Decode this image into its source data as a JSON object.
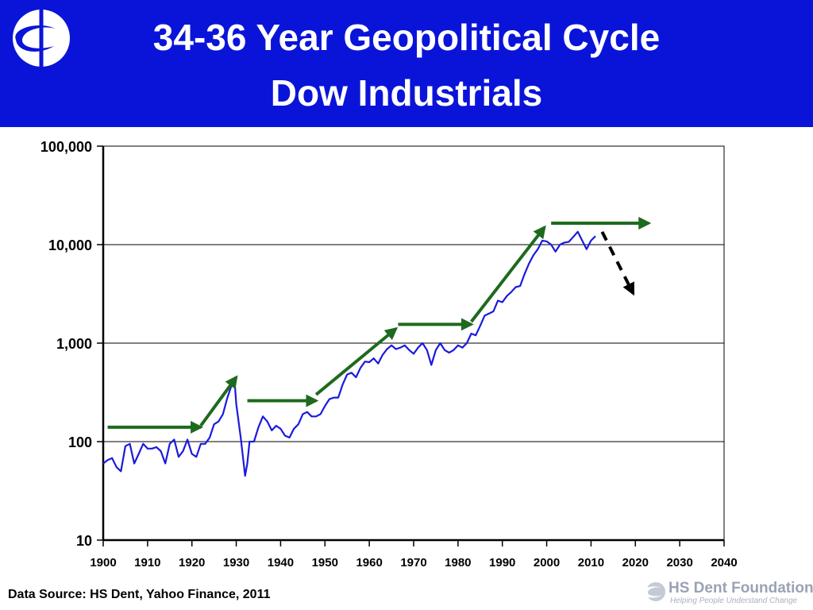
{
  "header": {
    "title_line1": "34-36 Year Geopolitical Cycle",
    "title_line2": "Dow Industrials",
    "logo_icon": "hs-dent-swoosh-icon"
  },
  "footer": {
    "source": "Data Source: HS Dent, Yahoo Finance, 2011",
    "brand_name": "HS Dent Foundation",
    "brand_tagline": "Helping People Understand Change",
    "brand_icon": "hs-dent-swoosh-icon"
  },
  "colors": {
    "header_bg": "#0a14d8",
    "series": "#1a1adf",
    "trend_arrows": "#1e6a1e",
    "forecast_arrow": "#000000",
    "gridline": "#000000"
  },
  "chart_data": {
    "type": "line",
    "scale": "log",
    "xlim": [
      1900,
      2040
    ],
    "ylim": [
      10,
      100000
    ],
    "grid": true,
    "x_ticks": [
      "1900",
      "1910",
      "1920",
      "1930",
      "1940",
      "1950",
      "1960",
      "1970",
      "1980",
      "1990",
      "2000",
      "2010",
      "2020",
      "2030",
      "2040"
    ],
    "y_ticks": [
      {
        "value": 10,
        "label": "10"
      },
      {
        "value": 100,
        "label": "100"
      },
      {
        "value": 1000,
        "label": "1,000"
      },
      {
        "value": 10000,
        "label": "10,000"
      },
      {
        "value": 100000,
        "label": "100,000"
      }
    ],
    "series": [
      {
        "x": [
          1900,
          1901,
          1902,
          1903,
          1904,
          1905,
          1906,
          1907,
          1908,
          1909,
          1910,
          1911,
          1912,
          1913,
          1914,
          1915,
          1916,
          1917,
          1918,
          1919,
          1920,
          1921,
          1922,
          1923,
          1924,
          1925,
          1926,
          1927,
          1928,
          1929,
          1929.7,
          1930,
          1931,
          1932,
          1932.5,
          1933,
          1934,
          1935,
          1936,
          1937,
          1938,
          1939,
          1940,
          1941,
          1942,
          1943,
          1944,
          1945,
          1946,
          1947,
          1948,
          1949,
          1950,
          1951,
          1952,
          1953,
          1954,
          1955,
          1956,
          1957,
          1958,
          1959,
          1960,
          1961,
          1962,
          1963,
          1964,
          1965,
          1966,
          1967,
          1968,
          1969,
          1970,
          1971,
          1972,
          1973,
          1974,
          1975,
          1976,
          1977,
          1978,
          1979,
          1980,
          1981,
          1982,
          1983,
          1984,
          1985,
          1986,
          1987,
          1988,
          1989,
          1990,
          1991,
          1992,
          1993,
          1994,
          1995,
          1996,
          1997,
          1998,
          1999,
          2000,
          2001,
          2002,
          2003,
          2004,
          2005,
          2006,
          2007,
          2008,
          2009,
          2010,
          2011
        ],
        "y": [
          60,
          65,
          68,
          55,
          50,
          90,
          95,
          60,
          75,
          95,
          85,
          85,
          88,
          80,
          60,
          95,
          105,
          70,
          80,
          105,
          75,
          70,
          95,
          95,
          110,
          150,
          160,
          190,
          280,
          380,
          370,
          240,
          110,
          45,
          60,
          100,
          100,
          140,
          180,
          160,
          130,
          145,
          135,
          115,
          110,
          135,
          150,
          190,
          200,
          180,
          180,
          190,
          230,
          270,
          280,
          280,
          380,
          480,
          500,
          450,
          560,
          650,
          640,
          700,
          620,
          760,
          870,
          950,
          870,
          900,
          950,
          850,
          780,
          900,
          1000,
          850,
          600,
          850,
          1000,
          850,
          800,
          850,
          950,
          900,
          1000,
          1250,
          1200,
          1500,
          1900,
          2000,
          2100,
          2700,
          2600,
          3000,
          3300,
          3700,
          3800,
          5000,
          6400,
          7800,
          9000,
          11000,
          10800,
          10000,
          8500,
          10000,
          10500,
          10700,
          12000,
          13500,
          11000,
          9000,
          11000,
          12200
        ]
      }
    ],
    "annotations": [
      {
        "type": "arrow",
        "color": "green",
        "from": [
          1901,
          140
        ],
        "to": [
          1922,
          140
        ]
      },
      {
        "type": "arrow",
        "color": "green",
        "from": [
          1922,
          145
        ],
        "to": [
          1930,
          450
        ]
      },
      {
        "type": "arrow",
        "color": "green",
        "from": [
          1932.5,
          260
        ],
        "to": [
          1948,
          260
        ]
      },
      {
        "type": "arrow",
        "color": "green",
        "from": [
          1948,
          300
        ],
        "to": [
          1966,
          1400
        ]
      },
      {
        "type": "arrow",
        "color": "green",
        "from": [
          1966.5,
          1550
        ],
        "to": [
          1983,
          1550
        ]
      },
      {
        "type": "arrow",
        "color": "green",
        "from": [
          1983,
          1650
        ],
        "to": [
          1999.5,
          15000
        ]
      },
      {
        "type": "arrow",
        "color": "green",
        "from": [
          2001,
          16500
        ],
        "to": [
          2023,
          16500
        ]
      },
      {
        "type": "arrow",
        "color": "black",
        "style": "dashed",
        "from": [
          2012.5,
          13500
        ],
        "to": [
          2019.5,
          3200
        ]
      }
    ]
  }
}
